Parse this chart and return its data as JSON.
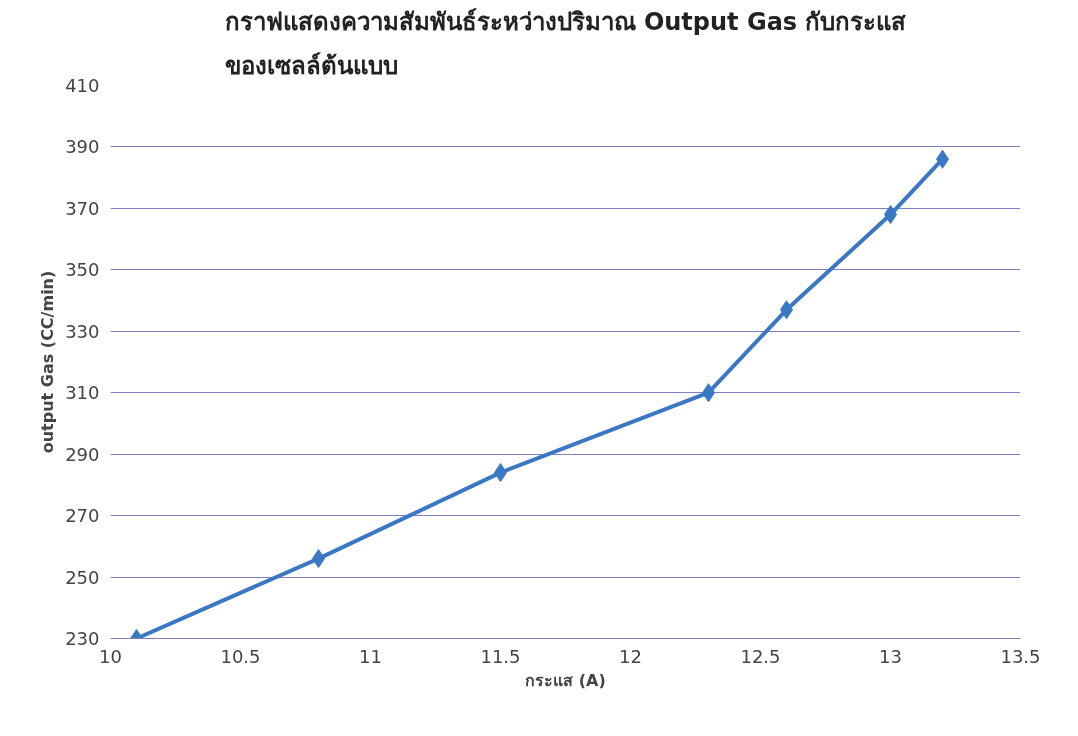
{
  "chart_data": {
    "type": "line",
    "title": "กราฟแสดงความสัมพันธ์ระหว่างปริมาณ Output Gas กับกระแส\nของเซลล์ต้นแบบ",
    "xlabel": "กระแส (A)",
    "ylabel": "output Gas (CC/min)",
    "x": [
      10.1,
      10.8,
      11.5,
      12.3,
      12.6,
      13.0,
      13.2
    ],
    "series": [
      {
        "color": "#3a78c4",
        "values": [
          230,
          256,
          284,
          310,
          337,
          368,
          386
        ]
      }
    ],
    "xlim": [
      10,
      13.5
    ],
    "xticks": [
      10,
      10.5,
      11,
      11.5,
      12,
      12.5,
      13,
      13.5
    ],
    "ylim": [
      230,
      410
    ],
    "yticks": [
      230,
      250,
      270,
      290,
      310,
      330,
      350,
      370,
      390,
      410
    ],
    "grid": "y",
    "marker": "diamond",
    "line_style": "solid"
  }
}
